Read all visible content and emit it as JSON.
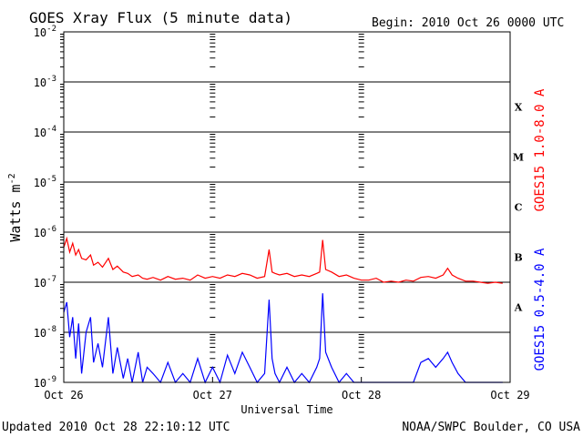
{
  "chart_data": {
    "type": "line",
    "title": "GOES Xray Flux (5 minute data)",
    "begin": "Begin:  2010 Oct 26 0000 UTC",
    "xlabel": "Universal Time",
    "ylabel": "Watts m",
    "ylabel_sup": "-2",
    "updated": "Updated 2010 Oct 28 22:10:12 UTC",
    "credit": "NOAA/SWPC Boulder, CO USA",
    "y_scale": "log",
    "ylim": [
      1e-09,
      0.01
    ],
    "xlim": [
      0,
      3
    ],
    "y_ticks": [
      {
        "base": "10",
        "exp": "-2",
        "value": 0.01
      },
      {
        "base": "10",
        "exp": "-3",
        "value": 0.001
      },
      {
        "base": "10",
        "exp": "-4",
        "value": 0.0001
      },
      {
        "base": "10",
        "exp": "-5",
        "value": 1e-05
      },
      {
        "base": "10",
        "exp": "-6",
        "value": 1e-06
      },
      {
        "base": "10",
        "exp": "-7",
        "value": 1e-07
      },
      {
        "base": "10",
        "exp": "-8",
        "value": 1e-08
      },
      {
        "base": "10",
        "exp": "-9",
        "value": 1e-09
      }
    ],
    "x_ticks": [
      {
        "label": "Oct 26",
        "value": 0
      },
      {
        "label": "Oct 27",
        "value": 1
      },
      {
        "label": "Oct 28",
        "value": 2
      },
      {
        "label": "Oct 29",
        "value": 3
      }
    ],
    "flare_classes": [
      {
        "label": "X",
        "exp": -3.5
      },
      {
        "label": "M",
        "exp": -4.5
      },
      {
        "label": "C",
        "exp": -5.5
      },
      {
        "label": "B",
        "exp": -6.5
      },
      {
        "label": "A",
        "exp": -7.5
      }
    ],
    "series": [
      {
        "name": "GOES15 1.0-8.0 A",
        "color": "#ff0000",
        "x": [
          0.0,
          0.02,
          0.04,
          0.06,
          0.08,
          0.1,
          0.12,
          0.15,
          0.18,
          0.2,
          0.23,
          0.26,
          0.3,
          0.33,
          0.36,
          0.4,
          0.43,
          0.46,
          0.5,
          0.53,
          0.56,
          0.6,
          0.65,
          0.7,
          0.75,
          0.8,
          0.85,
          0.9,
          0.95,
          1.0,
          1.05,
          1.1,
          1.15,
          1.2,
          1.25,
          1.3,
          1.35,
          1.38,
          1.4,
          1.42,
          1.45,
          1.5,
          1.55,
          1.6,
          1.65,
          1.7,
          1.72,
          1.74,
          1.76,
          1.8,
          1.85,
          1.9,
          1.95,
          2.0,
          2.05,
          2.1,
          2.15,
          2.2,
          2.25,
          2.3,
          2.35,
          2.4,
          2.45,
          2.5,
          2.55,
          2.58,
          2.61,
          2.65,
          2.7,
          2.75,
          2.8,
          2.85,
          2.9,
          2.95
        ],
        "values": [
          5e-07,
          7.5e-07,
          4e-07,
          6e-07,
          3.5e-07,
          4.5e-07,
          3e-07,
          2.8e-07,
          3.5e-07,
          2.2e-07,
          2.5e-07,
          2e-07,
          3e-07,
          1.8e-07,
          2.1e-07,
          1.6e-07,
          1.5e-07,
          1.3e-07,
          1.4e-07,
          1.2e-07,
          1.15e-07,
          1.25e-07,
          1.1e-07,
          1.3e-07,
          1.15e-07,
          1.2e-07,
          1.1e-07,
          1.4e-07,
          1.2e-07,
          1.3e-07,
          1.2e-07,
          1.4e-07,
          1.3e-07,
          1.5e-07,
          1.4e-07,
          1.2e-07,
          1.3e-07,
          4.5e-07,
          1.6e-07,
          1.5e-07,
          1.4e-07,
          1.5e-07,
          1.3e-07,
          1.4e-07,
          1.3e-07,
          1.5e-07,
          1.6e-07,
          7e-07,
          1.8e-07,
          1.6e-07,
          1.3e-07,
          1.4e-07,
          1.2e-07,
          1.1e-07,
          1.1e-07,
          1.2e-07,
          1e-07,
          1.05e-07,
          1e-07,
          1.1e-07,
          1.05e-07,
          1.25e-07,
          1.3e-07,
          1.2e-07,
          1.4e-07,
          1.9e-07,
          1.4e-07,
          1.2e-07,
          1.05e-07,
          1.05e-07,
          1e-07,
          9.5e-08,
          1e-07,
          9.5e-08
        ]
      },
      {
        "name": "GOES15 0.5-4.0 A",
        "color": "#0000ff",
        "x": [
          0.0,
          0.02,
          0.04,
          0.06,
          0.08,
          0.1,
          0.12,
          0.15,
          0.18,
          0.2,
          0.23,
          0.26,
          0.3,
          0.33,
          0.36,
          0.4,
          0.43,
          0.46,
          0.5,
          0.53,
          0.56,
          0.6,
          0.65,
          0.7,
          0.75,
          0.8,
          0.85,
          0.9,
          0.95,
          1.0,
          1.05,
          1.1,
          1.15,
          1.2,
          1.25,
          1.3,
          1.35,
          1.38,
          1.4,
          1.42,
          1.45,
          1.5,
          1.55,
          1.6,
          1.65,
          1.7,
          1.72,
          1.74,
          1.76,
          1.8,
          1.85,
          1.9,
          1.95,
          2.0,
          2.05,
          2.1,
          2.15,
          2.2,
          2.25,
          2.3,
          2.35,
          2.4,
          2.45,
          2.5,
          2.55,
          2.58,
          2.61,
          2.65,
          2.7,
          2.75,
          2.8,
          2.85,
          2.9,
          2.95
        ],
        "values": [
          2.5e-08,
          4e-08,
          8e-09,
          2e-08,
          3e-09,
          1.5e-08,
          1.5e-09,
          1e-08,
          2e-08,
          2.5e-09,
          6e-09,
          2e-09,
          2e-08,
          1.5e-09,
          5e-09,
          1.2e-09,
          3e-09,
          1e-09,
          4e-09,
          1e-09,
          2e-09,
          1.5e-09,
          1e-09,
          2.5e-09,
          1e-09,
          1.5e-09,
          1e-09,
          3e-09,
          1e-09,
          2e-09,
          1e-09,
          3.5e-09,
          1.5e-09,
          4e-09,
          2e-09,
          1e-09,
          1.5e-09,
          4.5e-08,
          3e-09,
          1.5e-09,
          1e-09,
          2e-09,
          1e-09,
          1.5e-09,
          1e-09,
          2e-09,
          3e-09,
          6e-08,
          4e-09,
          2e-09,
          1e-09,
          1.5e-09,
          1e-09,
          1e-09,
          1e-09,
          1e-09,
          1e-09,
          1e-09,
          1e-09,
          1e-09,
          1e-09,
          2.5e-09,
          3e-09,
          2e-09,
          3e-09,
          4e-09,
          2.5e-09,
          1.5e-09,
          1e-09,
          1e-09,
          1e-09,
          1e-09,
          1e-09,
          1e-09
        ]
      }
    ]
  }
}
